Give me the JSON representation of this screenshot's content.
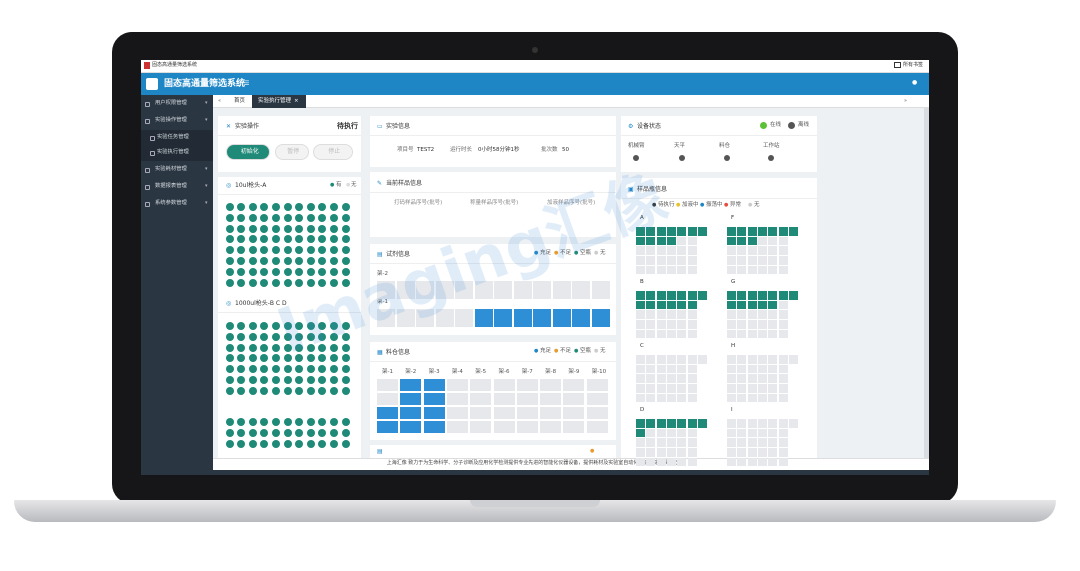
{
  "browser": {
    "tab_title": "固态高通量筛选系统",
    "bookmarks": "所有书签"
  },
  "header": {
    "title": "固态高通量筛选系统"
  },
  "sidebar": {
    "items": [
      "用户权限管理",
      "实验操作管理",
      "实验任务管理",
      "实验执行管理",
      "实验耗材管理",
      "数据报表管理",
      "系统参数管理"
    ]
  },
  "tabs": [
    "首页",
    "实验执行管理"
  ],
  "operation": {
    "title": "实验操作",
    "status": "待执行",
    "buttons": [
      "初始化",
      "暂停",
      "停止"
    ]
  },
  "tips": [
    {
      "title": "10ul枪头-A",
      "legend": [
        "有",
        "无"
      ]
    },
    {
      "title": "1000ul枪头-B C D"
    }
  ],
  "experiment": {
    "title": "实验信息",
    "fields": [
      {
        "label": "项目号",
        "value": "TEST2"
      },
      {
        "label": "运行时长",
        "value": "0小时58分钟1秒"
      },
      {
        "label": "批次数",
        "value": "50"
      }
    ]
  },
  "current_sample": {
    "title": "当前样品信息",
    "fields": [
      "打码样品序号(批号)",
      "称量样品序号(批号)",
      "加液样品序号(批号)"
    ]
  },
  "reagent": {
    "title": "试剂信息",
    "legend": [
      "充足",
      "不足",
      "空瓶",
      "无"
    ],
    "racks": [
      "架-2",
      "架-1"
    ]
  },
  "silo": {
    "title": "料仓信息",
    "legend": [
      "充足",
      "不足",
      "空瓶",
      "无"
    ],
    "racks": [
      "架-1",
      "架-2",
      "架-3",
      "架-4",
      "架-5",
      "架-6",
      "架-7",
      "架-8",
      "架-9",
      "架-10"
    ]
  },
  "device": {
    "title": "设备状态",
    "legend": [
      "在线",
      "离线"
    ],
    "items": [
      "机械臂",
      "天平",
      "料仓",
      "工作站"
    ]
  },
  "vials": {
    "title": "样品瓶信息",
    "legend": [
      "待执行",
      "加液中",
      "振荡中",
      "异常",
      "无"
    ],
    "groups": [
      "A",
      "F",
      "B",
      "G",
      "C",
      "H",
      "D",
      "I"
    ]
  },
  "footer": "上海汇像 致力于为生命科学、分子诊断及应用化学检测提供专业先进的智能化仪器设备，提供耗材及实验室自动化智能化综合解决方案",
  "watermark": "Imaging汇像"
}
